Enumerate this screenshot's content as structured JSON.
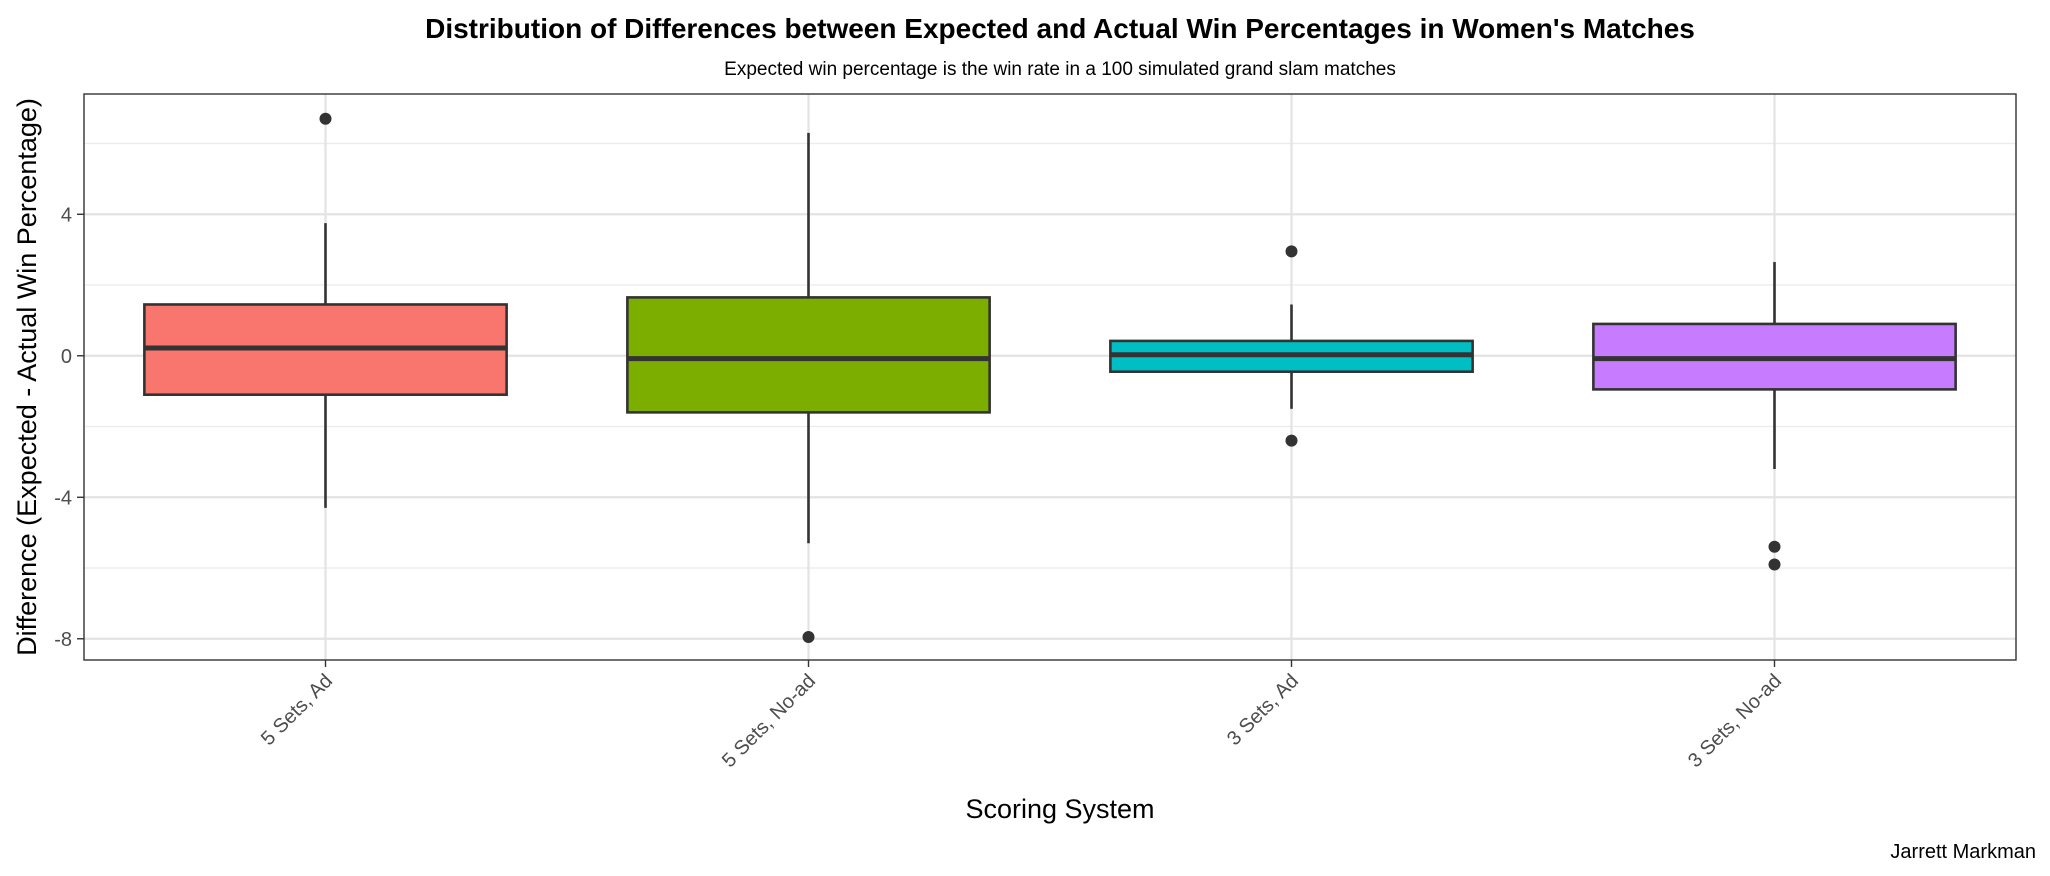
{
  "chart_data": {
    "type": "box",
    "title": "Distribution of Differences between Expected and Actual Win Percentages in Women's Matches",
    "subtitle": "Expected win percentage is the win rate in a 100 simulated grand slam matches",
    "xlabel": "Scoring System",
    "ylabel": "Difference (Expected - Actual Win Percentage)",
    "caption": "Jarrett Markman",
    "ylim": [
      -8.6,
      7.4
    ],
    "yticks": [
      4,
      0,
      -4,
      -8
    ],
    "ytick_labels": [
      "4",
      "0",
      "-4",
      "-8"
    ],
    "grid": true,
    "categories": [
      "5 Sets, Ad",
      "5 Sets, No-ad",
      "3 Sets, Ad",
      "3 Sets, No-ad"
    ],
    "boxes": [
      {
        "category": "5 Sets, Ad",
        "whisker_low": -4.3,
        "q1": -1.1,
        "median": 0.22,
        "q3": 1.45,
        "whisker_high": 3.75,
        "outliers": [
          6.7
        ],
        "color": "#F8766D"
      },
      {
        "category": "5 Sets, No-ad",
        "whisker_low": -5.3,
        "q1": -1.6,
        "median": -0.08,
        "q3": 1.65,
        "whisker_high": 6.3,
        "outliers": [
          -7.95
        ],
        "color": "#7CAE00"
      },
      {
        "category": "3 Sets, Ad",
        "whisker_low": -1.5,
        "q1": -0.45,
        "median": 0.03,
        "q3": 0.42,
        "whisker_high": 1.45,
        "outliers": [
          2.95,
          -2.4
        ],
        "color": "#00BFC4"
      },
      {
        "category": "3 Sets, No-ad",
        "whisker_low": -3.2,
        "q1": -0.95,
        "median": -0.08,
        "q3": 0.9,
        "whisker_high": 2.65,
        "outliers": [
          -5.4,
          -5.9
        ],
        "color": "#C77CFF"
      }
    ]
  }
}
